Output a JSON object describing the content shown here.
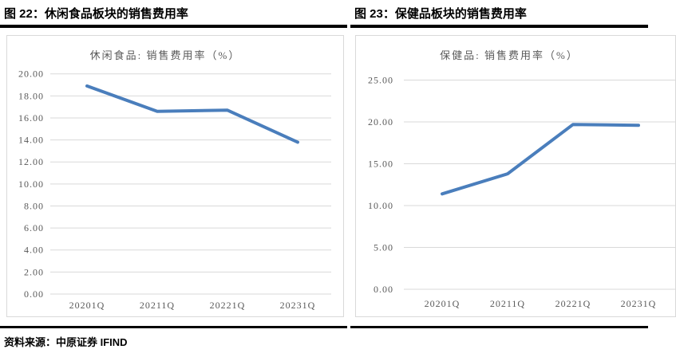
{
  "figures": [
    {
      "header": "图 22：休闲食品板块的销售费用率"
    },
    {
      "header": "图 23：保健品板块的销售费用率"
    }
  ],
  "chart_data": [
    {
      "type": "line",
      "title": "休闲食品: 销售费用率（%）",
      "categories": [
        "20201Q",
        "20211Q",
        "20221Q",
        "20231Q"
      ],
      "values": [
        18.9,
        16.6,
        16.7,
        13.8
      ],
      "xlabel": "",
      "ylabel": "",
      "ylim": [
        0,
        20
      ],
      "ytick_step": 2,
      "ytick_format_decimals": 2,
      "grid": true,
      "legend": "none",
      "line_color": "#4a7ebc"
    },
    {
      "type": "line",
      "title": "保健品: 销售费用率（%）",
      "categories": [
        "20201Q",
        "20211Q",
        "20221Q",
        "20231Q"
      ],
      "values": [
        11.4,
        13.8,
        19.7,
        19.6
      ],
      "xlabel": "",
      "ylabel": "",
      "ylim": [
        0,
        25
      ],
      "ytick_step": 5,
      "ytick_format_decimals": 2,
      "grid": true,
      "legend": "none",
      "line_color": "#4a7ebc"
    }
  ],
  "footer": {
    "source": "资料来源：中原证券 IFIND"
  },
  "colors": {
    "line": "#4a7ebc",
    "grid": "#d9d9d9",
    "axis_text": "#595959",
    "panel_border": "#d9d9d9",
    "rule_bar": "#000000"
  }
}
